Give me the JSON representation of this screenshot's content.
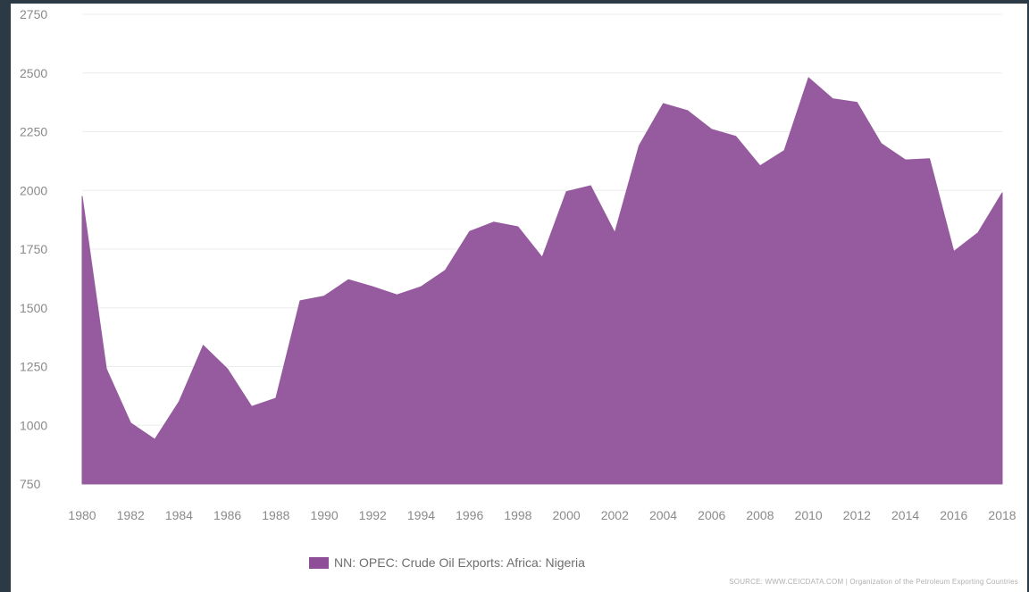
{
  "chart_data": {
    "type": "area",
    "title": "",
    "xlabel": "",
    "ylabel": "",
    "x": [
      1980,
      1981,
      1982,
      1983,
      1984,
      1985,
      1986,
      1987,
      1988,
      1989,
      1990,
      1991,
      1992,
      1993,
      1994,
      1995,
      1996,
      1997,
      1998,
      1999,
      2000,
      2001,
      2002,
      2003,
      2004,
      2005,
      2006,
      2007,
      2008,
      2009,
      2010,
      2011,
      2012,
      2013,
      2014,
      2015,
      2016,
      2017,
      2018
    ],
    "series": [
      {
        "name": "NN: OPEC: Crude Oil Exports: Africa: Nigeria",
        "color": "#955b9e",
        "values": [
          1975,
          1240,
          1010,
          940,
          1100,
          1340,
          1240,
          1080,
          1115,
          1530,
          1550,
          1620,
          1590,
          1555,
          1590,
          1660,
          1825,
          1865,
          1845,
          1715,
          1995,
          2020,
          1820,
          2190,
          2370,
          2340,
          2260,
          2230,
          2105,
          2170,
          2480,
          2390,
          2375,
          2200,
          2130,
          2135,
          1740,
          1820,
          1990
        ]
      }
    ],
    "ylim": [
      750,
      2750
    ],
    "yticks": [
      "750",
      "1000",
      "1250",
      "1500",
      "1750",
      "2000",
      "2250",
      "2500",
      "2750"
    ],
    "xticks": [
      "1980",
      "1982",
      "1984",
      "1986",
      "1988",
      "1990",
      "1992",
      "1994",
      "1996",
      "1998",
      "2000",
      "2002",
      "2004",
      "2006",
      "2008",
      "2010",
      "2012",
      "2014",
      "2016",
      "2018"
    ],
    "grid": true,
    "legend_position": "bottom"
  },
  "legend": {
    "label": "NN: OPEC: Crude Oil Exports: Africa: Nigeria",
    "color": "#8e4f98"
  },
  "source": "SOURCE: WWW.CEICDATA.COM | Organization of the Petroleum Exporting Countries"
}
